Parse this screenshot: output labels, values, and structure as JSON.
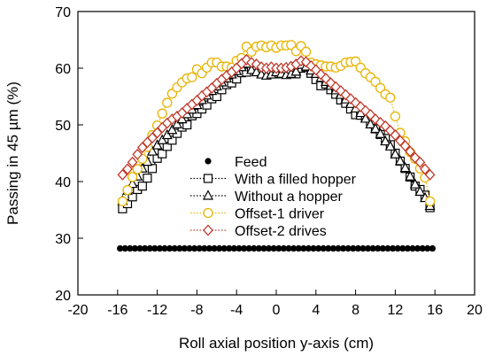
{
  "chart_data": {
    "type": "scatter",
    "xlabel": "Roll axial position y-axis (cm)",
    "ylabel": "Passing in 45 µm (%)",
    "xlim": [
      -20,
      20
    ],
    "ylim": [
      20,
      70
    ],
    "xticks": [
      "-20",
      "-16",
      "-12",
      "-8",
      "-4",
      "0",
      "4",
      "8",
      "12",
      "16",
      "20"
    ],
    "yticks": [
      "20",
      "30",
      "40",
      "50",
      "60",
      "70"
    ],
    "grid": false,
    "legend_position": "center",
    "series": [
      {
        "name": "Feed",
        "marker": "filled-circle",
        "color": "#000000",
        "line": "none",
        "x": [
          -15.75,
          -15.25,
          -14.75,
          -14.25,
          -13.75,
          -13.25,
          -12.75,
          -12.25,
          -11.75,
          -11.25,
          -10.75,
          -10.25,
          -9.75,
          -9.25,
          -8.75,
          -8.25,
          -7.75,
          -7.25,
          -6.75,
          -6.25,
          -5.75,
          -5.25,
          -4.75,
          -4.25,
          -3.75,
          -3.25,
          -2.75,
          -2.25,
          -1.75,
          -1.25,
          -0.75,
          -0.25,
          0.25,
          0.75,
          1.25,
          1.75,
          2.25,
          2.75,
          3.25,
          3.75,
          4.25,
          4.75,
          5.25,
          5.75,
          6.25,
          6.75,
          7.25,
          7.75,
          8.25,
          8.75,
          9.25,
          9.75,
          10.25,
          10.75,
          11.25,
          11.75,
          12.25,
          12.75,
          13.25,
          13.75,
          14.25,
          14.75,
          15.25,
          15.75
        ],
        "y": [
          28.2,
          28.2,
          28.2,
          28.2,
          28.2,
          28.2,
          28.2,
          28.2,
          28.2,
          28.2,
          28.2,
          28.2,
          28.2,
          28.2,
          28.2,
          28.2,
          28.2,
          28.2,
          28.2,
          28.2,
          28.2,
          28.2,
          28.2,
          28.2,
          28.2,
          28.2,
          28.2,
          28.2,
          28.2,
          28.2,
          28.2,
          28.2,
          28.2,
          28.2,
          28.2,
          28.2,
          28.2,
          28.2,
          28.2,
          28.2,
          28.2,
          28.2,
          28.2,
          28.2,
          28.2,
          28.2,
          28.2,
          28.2,
          28.2,
          28.2,
          28.2,
          28.2,
          28.2,
          28.2,
          28.2,
          28.2,
          28.2,
          28.2,
          28.2,
          28.2,
          28.2,
          28.2,
          28.2,
          28.2
        ]
      },
      {
        "name": "With a filled hopper",
        "marker": "open-square",
        "color": "#000000",
        "line": "dotted",
        "x": [
          -15.5,
          -15,
          -14.5,
          -14,
          -13.5,
          -13,
          -12.5,
          -12,
          -11.5,
          -11,
          -10.5,
          -10,
          -9.5,
          -9,
          -8.5,
          -8,
          -7.5,
          -7,
          -6.5,
          -6,
          -5.5,
          -5,
          -4.5,
          -4,
          -3.5,
          -3,
          -2.5,
          -2,
          -1.5,
          -1,
          -0.5,
          0,
          0.5,
          1,
          1.5,
          2,
          2.5,
          3,
          3.5,
          4,
          4.5,
          5,
          5.5,
          6,
          6.5,
          7,
          7.5,
          8,
          8.5,
          9,
          9.5,
          10,
          10.5,
          11,
          11.5,
          12,
          12.5,
          13,
          13.5,
          14,
          14.5,
          15,
          15.5
        ],
        "y": [
          35.2,
          36.1,
          37.3,
          38.6,
          39.2,
          40.6,
          42.3,
          44.1,
          44.9,
          46.2,
          47.3,
          48.5,
          49.6,
          50.0,
          51.6,
          52.0,
          52.8,
          53.5,
          54.6,
          55.0,
          56.2,
          57.1,
          57.4,
          58.1,
          59.2,
          59.3,
          60.0,
          59.6,
          59.1,
          59.0,
          59.4,
          59.0,
          59.1,
          59.2,
          59.4,
          59.0,
          60.0,
          60.2,
          59.1,
          58.0,
          56.9,
          57.2,
          56.2,
          55.4,
          54.4,
          53.8,
          52.8,
          51.8,
          51.7,
          51.2,
          50.6,
          49.3,
          48.3,
          47.6,
          46.5,
          45.0,
          43.6,
          42.3,
          40.8,
          39.2,
          38.6,
          37.6,
          35.4
        ]
      },
      {
        "name": "Without a hopper",
        "marker": "open-triangle",
        "color": "#000000",
        "line": "dotted",
        "x": [
          -15.5,
          -15,
          -14.5,
          -14,
          -13.5,
          -13,
          -12.5,
          -12,
          -11.5,
          -11,
          -10.5,
          -10,
          -9.5,
          -9,
          -8.5,
          -8,
          -7.5,
          -7,
          -6.5,
          -6,
          -5.5,
          -5,
          -4.5,
          -4,
          -3.5,
          -3,
          -2.5,
          -2,
          -1.5,
          -1,
          -0.5,
          0,
          0.5,
          1,
          1.5,
          2,
          2.5,
          3,
          3.5,
          4,
          4.5,
          5,
          5.5,
          6,
          6.5,
          7,
          7.5,
          8,
          8.5,
          9,
          9.5,
          10,
          10.5,
          11,
          11.5,
          12,
          12.5,
          13,
          13.5,
          14,
          14.5,
          15,
          15.5
        ],
        "y": [
          36.6,
          38.4,
          39.6,
          40.9,
          42.3,
          43.5,
          45.3,
          46.4,
          47.3,
          48.2,
          49.1,
          50.1,
          51.0,
          51.9,
          52.7,
          53.5,
          54.4,
          55.2,
          56.0,
          56.8,
          57.5,
          58.2,
          58.9,
          59.5,
          60.2,
          60.8,
          59.7,
          59.3,
          58.9,
          58.7,
          58.9,
          59.3,
          59.0,
          58.8,
          59.0,
          59.4,
          60.6,
          60.3,
          59.6,
          59.0,
          58.3,
          57.6,
          56.9,
          56.1,
          55.3,
          54.5,
          53.7,
          52.9,
          52.1,
          51.1,
          50.1,
          49.3,
          48.4,
          47.1,
          46.2,
          44.8,
          43.6,
          42.4,
          40.9,
          39.5,
          38.2,
          37.1,
          35.7
        ]
      },
      {
        "name": "Offset-1 driver",
        "marker": "open-circle",
        "color": "#e8b400",
        "line": "dotted",
        "x": [
          -15.5,
          -15,
          -14.5,
          -14,
          -13.5,
          -13,
          -12.5,
          -12,
          -11.5,
          -11,
          -10.5,
          -10,
          -9.5,
          -9,
          -8.5,
          -8,
          -7.5,
          -7,
          -6.5,
          -6,
          -5.5,
          -5,
          -4.5,
          -4,
          -3.5,
          -3,
          -2.5,
          -2,
          -1.5,
          -1,
          -0.5,
          0,
          0.5,
          1,
          1.5,
          2,
          2.5,
          3,
          3.5,
          4,
          4.5,
          5,
          5.5,
          6,
          6.5,
          7,
          7.5,
          8,
          8.5,
          9,
          9.5,
          10,
          10.5,
          11,
          11.5,
          12,
          12.5,
          13,
          13.5,
          14,
          14.5,
          15,
          15.5
        ],
        "y": [
          36.5,
          38.5,
          40.8,
          42.2,
          44.0,
          46.1,
          48.2,
          49.9,
          52.0,
          53.9,
          55.5,
          56.6,
          57.5,
          58.2,
          58.4,
          59.8,
          59.1,
          60.1,
          61.0,
          61.0,
          60.3,
          60.3,
          60.1,
          61.3,
          61.8,
          63.8,
          62.9,
          63.8,
          64.0,
          63.7,
          64.0,
          63.6,
          64.0,
          64.0,
          64.1,
          63.0,
          63.9,
          62.9,
          61.0,
          60.7,
          60.5,
          60.3,
          60.3,
          60.1,
          60.4,
          61.0,
          61.1,
          61.2,
          60.1,
          59.1,
          58.4,
          57.6,
          56.5,
          55.4,
          54.8,
          51.5,
          48.6,
          47.1,
          45.2,
          44.0,
          42.3,
          40.7,
          36.5
        ]
      },
      {
        "name": "Offset-2 drives",
        "marker": "open-diamond",
        "color": "#c0392b",
        "line": "dotted",
        "x": [
          -15.5,
          -15,
          -14.5,
          -14,
          -13.5,
          -13,
          -12.5,
          -12,
          -11.5,
          -11,
          -10.5,
          -10,
          -9.5,
          -9,
          -8.5,
          -8,
          -7.5,
          -7,
          -6.5,
          -6,
          -5.5,
          -5,
          -4.5,
          -4,
          -3.5,
          -3,
          -2.5,
          -2,
          -1.5,
          -1,
          -0.5,
          0,
          0.5,
          1,
          1.5,
          2,
          2.5,
          3,
          3.5,
          4,
          4.5,
          5,
          5.5,
          6,
          6.5,
          7,
          7.5,
          8,
          8.5,
          9,
          9.5,
          10,
          10.5,
          11,
          11.5,
          12,
          12.5,
          13,
          13.5,
          14,
          14.5,
          15,
          15.5
        ],
        "y": [
          41.2,
          42.2,
          43.4,
          44.8,
          46.0,
          46.9,
          47.7,
          48.6,
          49.5,
          50.3,
          51.0,
          51.5,
          52.1,
          52.9,
          53.6,
          54.3,
          55.1,
          55.8,
          56.5,
          57.3,
          58.0,
          58.7,
          59.3,
          60.0,
          60.8,
          61.5,
          61.0,
          60.7,
          60.2,
          60.0,
          60.2,
          60.0,
          60.0,
          60.1,
          60.3,
          60.7,
          61.3,
          61.1,
          60.4,
          59.7,
          58.9,
          58.2,
          57.4,
          56.7,
          56.0,
          55.3,
          54.6,
          53.9,
          53.2,
          52.5,
          51.8,
          51.0,
          50.4,
          49.8,
          49.0,
          48.2,
          47.2,
          46.3,
          45.3,
          44.2,
          43.4,
          42.2,
          41.2
        ]
      }
    ]
  }
}
